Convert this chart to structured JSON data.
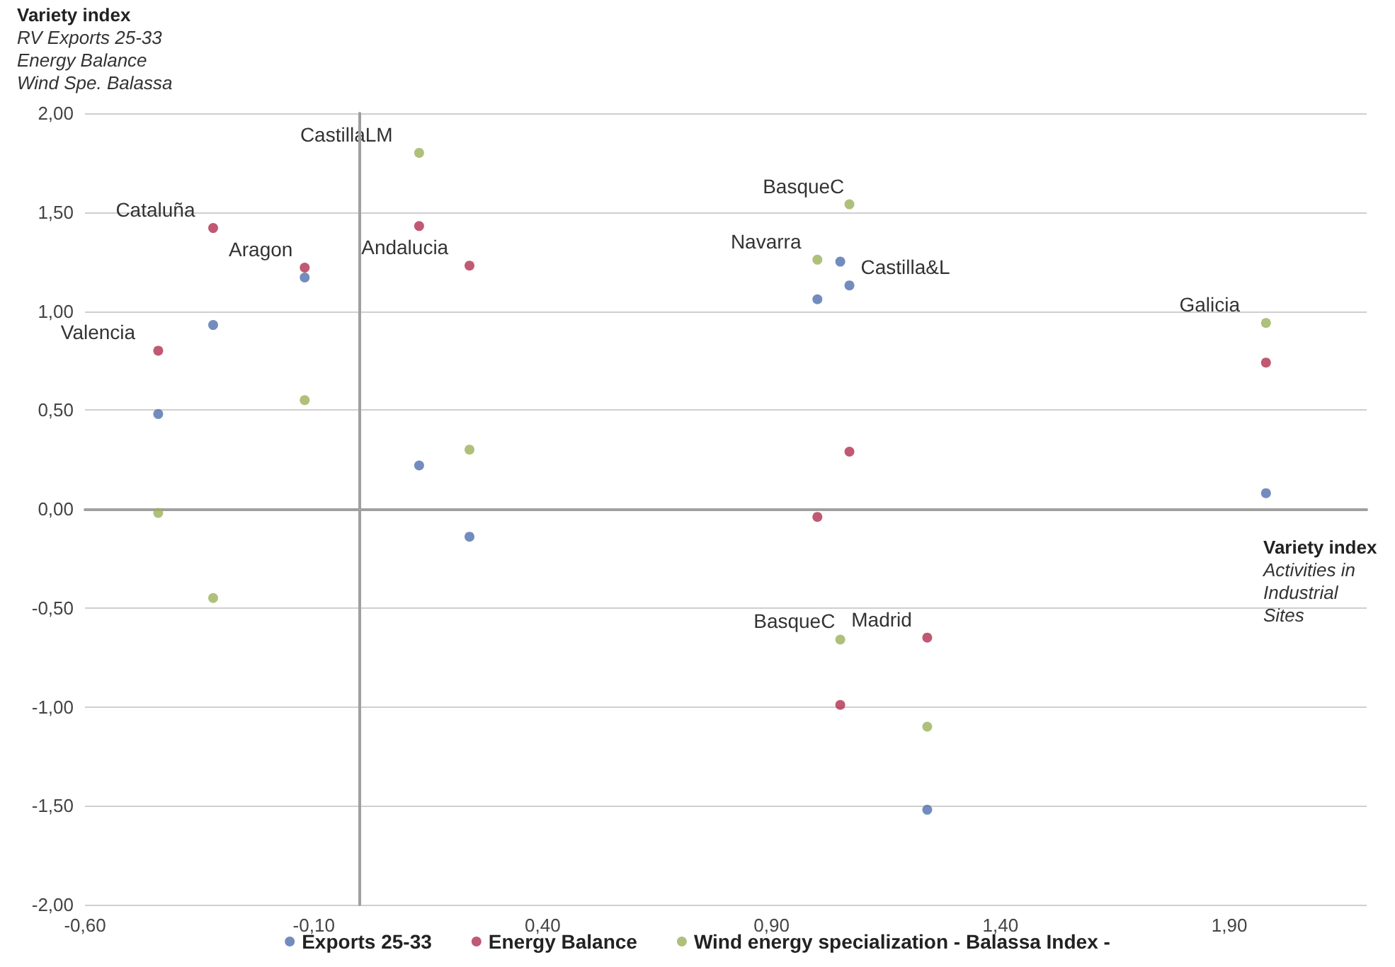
{
  "chart_data": {
    "type": "scatter",
    "ylabel": "Variety index\nRV Exports 25-33\nEnergy Balance\nWind Spe. Balassa",
    "xlabel": "Variety index\nActivities in\nIndustrial\nSites",
    "series": [
      {
        "name": "Exports 25-33",
        "color": "#4f6fad",
        "x": [
          -0.44,
          -0.32,
          -0.12,
          0.13,
          0.24,
          1.0,
          1.05,
          1.07,
          1.24,
          1.98
        ],
        "values": [
          0.48,
          0.93,
          1.17,
          0.22,
          -0.14,
          1.06,
          1.25,
          1.13,
          -1.52,
          0.08
        ]
      },
      {
        "name": "Energy Balance",
        "color": "#b0304f",
        "x": [
          -0.44,
          -0.32,
          -0.12,
          0.13,
          0.24,
          1.0,
          1.07,
          1.05,
          1.24,
          1.98
        ],
        "values": [
          0.8,
          1.42,
          1.22,
          1.43,
          1.23,
          -0.04,
          0.29,
          -0.99,
          -0.65,
          0.74
        ]
      },
      {
        "name": "Wind energy specialization - Balassa Index -",
        "color": "#9bb05a",
        "x": [
          -0.44,
          -0.32,
          -0.12,
          0.13,
          0.24,
          1.0,
          1.07,
          1.05,
          1.24,
          1.98
        ],
        "values": [
          -0.02,
          -0.45,
          0.55,
          1.8,
          0.3,
          1.26,
          1.54,
          -0.66,
          -1.1,
          0.94
        ]
      }
    ],
    "xlim": [
      -0.6,
      2.2
    ],
    "xticks": [
      {
        "value": -0.6,
        "label": "-0,60"
      },
      {
        "value": -0.1,
        "label": "-0,10"
      },
      {
        "value": 0.4,
        "label": "0,40"
      },
      {
        "value": 0.9,
        "label": "0,90"
      },
      {
        "value": 1.4,
        "label": "1,40"
      },
      {
        "value": 1.9,
        "label": "1,90"
      }
    ],
    "ylim": [
      -2,
      2
    ],
    "yticks": [
      {
        "value": -2,
        "label": "-2,00"
      },
      {
        "value": -1.5,
        "label": "-1,50"
      },
      {
        "value": -1,
        "label": "-1,00"
      },
      {
        "value": -0.5,
        "label": "-0,50"
      },
      {
        "value": 0,
        "label": "0,00"
      },
      {
        "value": 0.5,
        "label": "0,50"
      },
      {
        "value": 1,
        "label": "1,00"
      },
      {
        "value": 1.5,
        "label": "1,50"
      },
      {
        "value": 2,
        "label": "2,00"
      }
    ],
    "annotations": [
      {
        "text": "Valencia",
        "x": -0.44,
        "y": 0.8
      },
      {
        "text": "Cataluña",
        "x": -0.32,
        "y": 1.42
      },
      {
        "text": "Aragon",
        "x": -0.12,
        "y": 1.22
      },
      {
        "text": "CastillaLM",
        "x": 0.13,
        "y": 1.8
      },
      {
        "text": "Andalucia",
        "x": 0.24,
        "y": 1.23
      },
      {
        "text": "BasqueC",
        "x": 1.07,
        "y": 1.54
      },
      {
        "text": "Navarra",
        "x": 1.0,
        "y": 1.26
      },
      {
        "text": "Castilla&L",
        "x": 1.07,
        "y": 1.13
      },
      {
        "text": "Galicia",
        "x": 1.98,
        "y": 0.94
      },
      {
        "text": "BasqueC",
        "x": 1.05,
        "y": -0.66
      },
      {
        "text": "Madrid",
        "x": 1.24,
        "y": -0.65
      }
    ],
    "grid": "y",
    "legend": "bottom",
    "marker": "circle"
  }
}
